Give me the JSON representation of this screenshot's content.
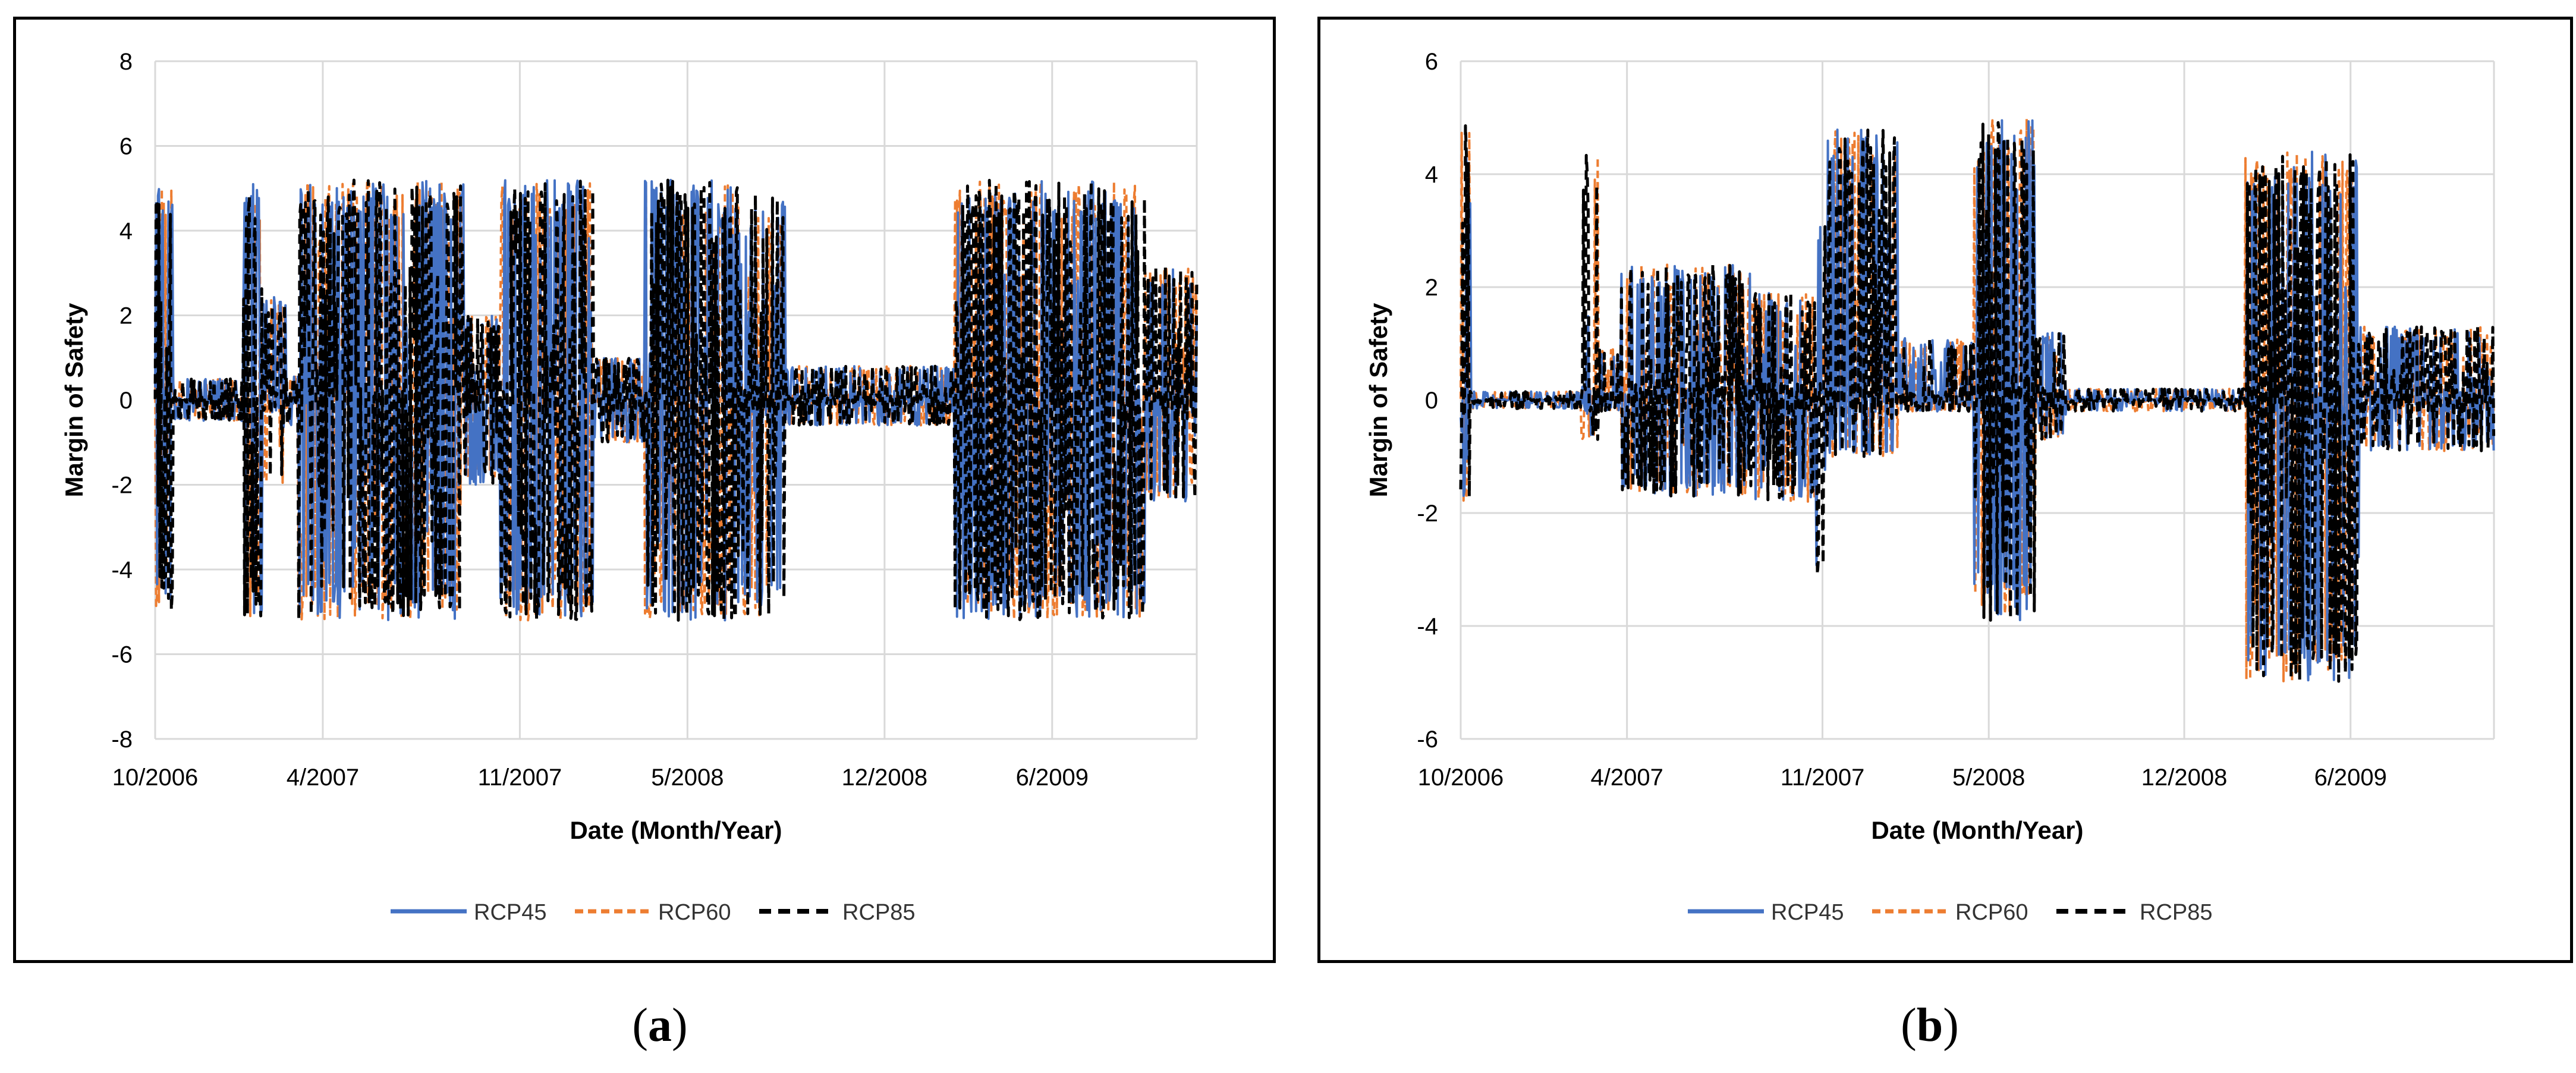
{
  "colors": {
    "rcp45": "#4472C4",
    "rcp60": "#ED7D31",
    "rcp85": "#000000",
    "grid": "#D9D9D9"
  },
  "chart_data": [
    {
      "type": "line",
      "panel": "a",
      "caption_letter": "a",
      "title": "",
      "xlabel": "Date (Month/Year)",
      "ylabel": "Margin of Safety",
      "xlim": [
        "2006-10-01",
        "2009-11-05"
      ],
      "ylim": [
        -8,
        8
      ],
      "yticks": [
        -8,
        -6,
        -4,
        -2,
        0,
        2,
        4,
        6,
        8
      ],
      "xticks": [
        "10/2006",
        "4/2007",
        "11/2007",
        "5/2008",
        "12/2008",
        "6/2009"
      ],
      "grid": true,
      "legend": "bottom",
      "series": [
        {
          "name": "RCP45",
          "style": "solid"
        },
        {
          "name": "RCP60",
          "style": "dashed"
        },
        {
          "name": "RCP85",
          "style": "dashed"
        }
      ],
      "bands": [
        {
          "from": "2006-10-01",
          "to": "2006-10-20",
          "min": -5.0,
          "max": 5.0,
          "intensity": 0.85
        },
        {
          "from": "2006-10-20",
          "to": "2007-01-05",
          "min": -0.5,
          "max": 0.5,
          "intensity": 0.55
        },
        {
          "from": "2007-01-05",
          "to": "2007-01-25",
          "min": -5.1,
          "max": 5.1,
          "intensity": 0.85
        },
        {
          "from": "2007-01-25",
          "to": "2007-02-20",
          "min": -2.0,
          "max": 2.5,
          "intensity": 0.6
        },
        {
          "from": "2007-02-20",
          "to": "2007-03-05",
          "min": -0.6,
          "max": 0.6,
          "intensity": 0.5
        },
        {
          "from": "2007-03-05",
          "to": "2007-09-01",
          "min": -5.2,
          "max": 5.2,
          "intensity": 0.9
        },
        {
          "from": "2007-09-01",
          "to": "2007-10-10",
          "min": -2.0,
          "max": 2.0,
          "intensity": 0.7
        },
        {
          "from": "2007-10-10",
          "to": "2008-01-20",
          "min": -5.2,
          "max": 5.2,
          "intensity": 0.85
        },
        {
          "from": "2008-01-20",
          "to": "2008-03-15",
          "min": -1.0,
          "max": 1.0,
          "intensity": 0.65
        },
        {
          "from": "2008-03-15",
          "to": "2008-06-25",
          "min": -5.2,
          "max": 5.2,
          "intensity": 0.85
        },
        {
          "from": "2008-06-25",
          "to": "2008-08-15",
          "min": -5.1,
          "max": 4.9,
          "intensity": 0.6
        },
        {
          "from": "2008-08-15",
          "to": "2009-02-15",
          "min": -0.6,
          "max": 0.8,
          "intensity": 0.55
        },
        {
          "from": "2009-02-15",
          "to": "2009-09-10",
          "min": -5.2,
          "max": 5.2,
          "intensity": 0.88
        },
        {
          "from": "2009-09-10",
          "to": "2009-11-05",
          "min": -2.4,
          "max": 3.2,
          "intensity": 0.7
        }
      ]
    },
    {
      "type": "line",
      "panel": "b",
      "caption_letter": "b",
      "title": "",
      "xlabel": "Date (Month/Year)",
      "ylabel": "Margin of Safety",
      "xlim": [
        "2006-10-01",
        "2009-11-05"
      ],
      "ylim": [
        -6,
        6
      ],
      "yticks": [
        -6,
        -4,
        -2,
        0,
        2,
        4,
        6
      ],
      "xticks": [
        "10/2006",
        "4/2007",
        "11/2007",
        "5/2008",
        "12/2008",
        "6/2009"
      ],
      "grid": true,
      "legend": "bottom",
      "series": [
        {
          "name": "RCP45",
          "style": "solid"
        },
        {
          "name": "RCP60",
          "style": "dashed"
        },
        {
          "name": "RCP85",
          "style": "dashed"
        }
      ],
      "bands": [
        {
          "from": "2006-10-01",
          "to": "2006-10-12",
          "min": -1.8,
          "max": 5.0,
          "intensity": 0.8
        },
        {
          "from": "2006-10-12",
          "to": "2007-02-10",
          "min": -0.15,
          "max": 0.15,
          "intensity": 0.45
        },
        {
          "from": "2007-02-10",
          "to": "2007-02-28",
          "min": -0.7,
          "max": 4.4,
          "intensity": 0.4
        },
        {
          "from": "2007-02-28",
          "to": "2007-03-25",
          "min": -0.2,
          "max": 0.9,
          "intensity": 0.4
        },
        {
          "from": "2007-03-25",
          "to": "2007-08-15",
          "min": -1.7,
          "max": 2.4,
          "intensity": 0.7
        },
        {
          "from": "2007-08-15",
          "to": "2007-10-25",
          "min": -1.8,
          "max": 1.9,
          "intensity": 0.55
        },
        {
          "from": "2007-10-25",
          "to": "2007-11-05",
          "min": -3.1,
          "max": 3.1,
          "intensity": 0.5
        },
        {
          "from": "2007-11-05",
          "to": "2008-01-25",
          "min": -1.0,
          "max": 4.8,
          "intensity": 0.65
        },
        {
          "from": "2008-01-25",
          "to": "2008-04-15",
          "min": -0.2,
          "max": 1.1,
          "intensity": 0.5
        },
        {
          "from": "2008-04-15",
          "to": "2008-06-20",
          "min": -3.9,
          "max": 5.0,
          "intensity": 0.7
        },
        {
          "from": "2008-06-20",
          "to": "2008-07-25",
          "min": -0.7,
          "max": 1.2,
          "intensity": 0.5
        },
        {
          "from": "2008-07-25",
          "to": "2009-02-05",
          "min": -0.2,
          "max": 0.2,
          "intensity": 0.45
        },
        {
          "from": "2009-02-05",
          "to": "2009-06-10",
          "min": -5.0,
          "max": 4.4,
          "intensity": 0.7
        },
        {
          "from": "2009-06-10",
          "to": "2009-11-05",
          "min": -0.9,
          "max": 1.3,
          "intensity": 0.55
        }
      ]
    }
  ]
}
